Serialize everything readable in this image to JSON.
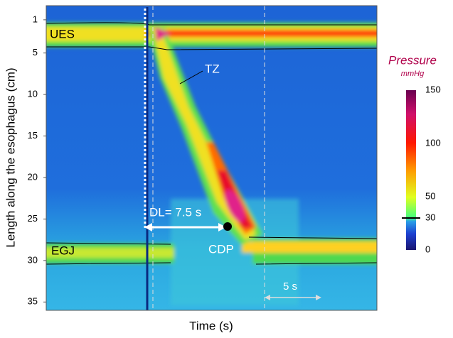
{
  "chart_data": {
    "type": "heatmap",
    "ylabel": "Length along the esophagus (cm)",
    "xlabel": "Time (s)",
    "ylim": [
      -0.7,
      36
    ],
    "yticks": [
      1,
      5,
      10,
      15,
      20,
      25,
      30,
      35
    ],
    "annotations": {
      "ues": "UES",
      "tz": "TZ",
      "egj": "EGJ",
      "cdp": "CDP",
      "dl": "DL= 7.5 s",
      "scale": "5 s"
    },
    "colorbar": {
      "title": "Pressure",
      "unit": "mmHg",
      "clim": [
        0,
        150
      ],
      "ticks": [
        0,
        30,
        50,
        100,
        150
      ]
    }
  }
}
